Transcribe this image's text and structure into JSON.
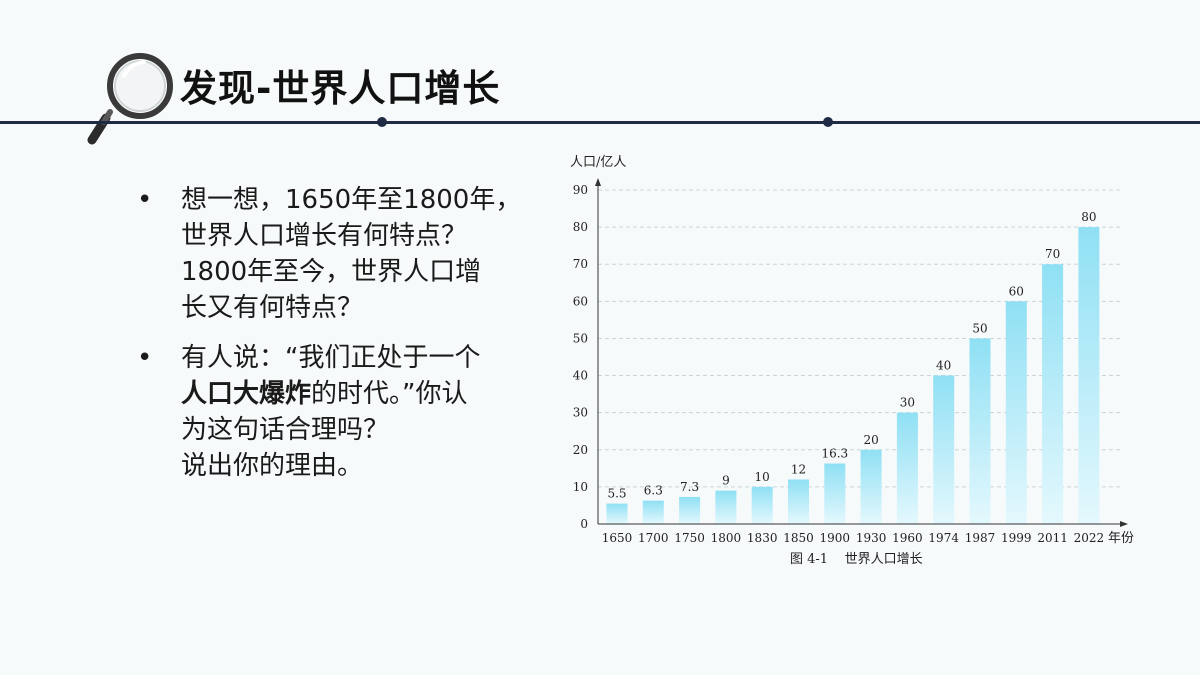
{
  "title": "发现-世界人口增长",
  "bullets": [
    {
      "text": "想一想，1650年至1800年，\n世界人口增长有何特点？\n1800年至今，世界人口增\n长又有何特点？"
    },
    {
      "text_before": "有人说：“我们正处于一个\n",
      "text_bold": "人口大爆炸",
      "text_after": "的时代。”你认\n为这句话合理吗？\n说出你的理由。"
    }
  ],
  "colors": {
    "rule": "#1f2a44",
    "bar_top": "#8fe0f4",
    "bar_bottom": "#e4f8fd",
    "grid": "#c8d6dc"
  },
  "chart_data": {
    "type": "bar",
    "ylabel": "人口/亿人",
    "xlabel": "年份",
    "caption": "图 4-1    世界人口增长",
    "categories": [
      "1650",
      "1700",
      "1750",
      "1800",
      "1830",
      "1850",
      "1900",
      "1930",
      "1960",
      "1974",
      "1987",
      "1999",
      "2011",
      "2022"
    ],
    "values": [
      5.5,
      6.3,
      7.3,
      9,
      10,
      12,
      16.3,
      20,
      30,
      40,
      50,
      60,
      70,
      80
    ],
    "data_labels": [
      "5.5",
      "6.3",
      "7.3",
      "9",
      "10",
      "12",
      "16.3",
      "20",
      "30",
      "40",
      "50",
      "60",
      "70",
      "80"
    ],
    "ylim": [
      0,
      90
    ],
    "yticks": [
      0,
      10,
      20,
      30,
      40,
      50,
      60,
      70,
      80,
      90
    ],
    "grid": true,
    "legend": "none"
  }
}
